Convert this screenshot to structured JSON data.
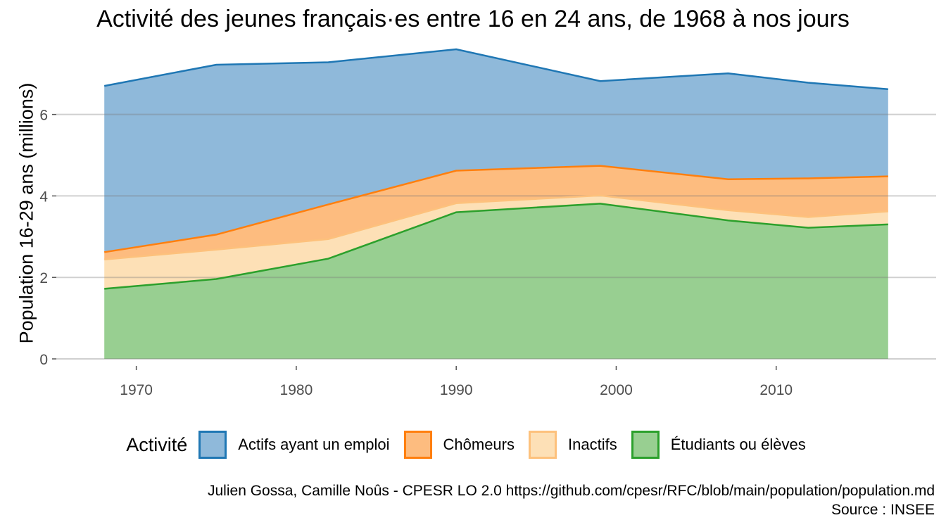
{
  "chart_data": {
    "type": "area",
    "stacked": true,
    "title": "Activité des jeunes français·es entre 16 en 24 ans, de 1968 à nos jours",
    "xlabel": "",
    "ylabel": "Population 16-29 ans (millions)",
    "x": [
      1968,
      1975,
      1982,
      1990,
      1999,
      2007,
      2012,
      2017
    ],
    "xticks": [
      1970,
      1980,
      1990,
      2000,
      2010
    ],
    "yticks": [
      0,
      2,
      4,
      6
    ],
    "xlim": [
      1965,
      2020
    ],
    "ylim": [
      0,
      7.6
    ],
    "grid": "horizontal",
    "legend_position": "bottom",
    "legend_title": "Activité",
    "series": [
      {
        "name": "Étudiants ou élèves",
        "color": "#2ca02c",
        "fill": "#98cf91",
        "values": [
          1.72,
          1.96,
          2.46,
          3.6,
          3.81,
          3.4,
          3.22,
          3.3
        ]
      },
      {
        "name": "Inactifs",
        "color": "#fdc17c",
        "fill": "#fde0b6",
        "values": [
          0.72,
          0.72,
          0.48,
          0.22,
          0.2,
          0.25,
          0.26,
          0.32
        ]
      },
      {
        "name": "Chômeurs",
        "color": "#ff7f0e",
        "fill": "#fdbc7f",
        "values": [
          0.18,
          0.37,
          0.85,
          0.8,
          0.73,
          0.76,
          0.95,
          0.86
        ]
      },
      {
        "name": "Actifs ayant un emploi",
        "color": "#1f77b4",
        "fill": "#8fb9da",
        "values": [
          4.08,
          4.17,
          3.49,
          2.98,
          2.08,
          2.6,
          2.35,
          2.14
        ]
      }
    ],
    "legend_order": [
      "Actifs ayant un emploi",
      "Chômeurs",
      "Inactifs",
      "Étudiants ou élèves"
    ]
  },
  "caption_line1": "Julien Gossa, Camille Noûs - CPESR LO 2.0 https://github.com/cpesr/RFC/blob/main/population/population.md",
  "caption_line2": "Source : INSEE"
}
